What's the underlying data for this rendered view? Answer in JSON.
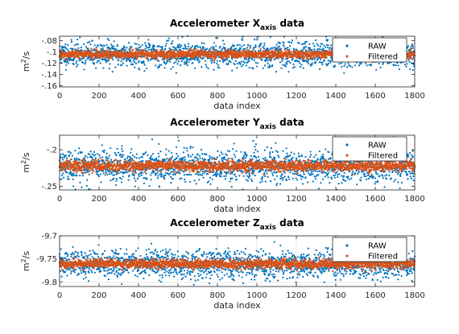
{
  "colors": {
    "raw": "#0072BD",
    "filtered": "#D95319",
    "axis": "#262626",
    "grid": "#dddddd"
  },
  "chart_data": [
    {
      "type": "scatter",
      "title_main": "Accelerometer X",
      "title_sub": "axis",
      "title_rest": " data",
      "xlabel": "data index",
      "ylabel_base": "m",
      "ylabel_sup": "2",
      "ylabel_rest": "/s",
      "xlim": [
        0,
        1800
      ],
      "ylim": [
        -0.162,
        -0.072
      ],
      "xticks": [
        0,
        200,
        400,
        600,
        800,
        1000,
        1200,
        1400,
        1600,
        1800
      ],
      "yticks": [
        -0.08,
        -0.1,
        -0.12,
        -0.14,
        -0.16
      ],
      "legend": [
        "RAW",
        "Filtered"
      ],
      "legend_position": "top-right",
      "grid": false,
      "series": [
        {
          "name": "RAW",
          "n": 1800,
          "mean": -0.104,
          "spread": 0.011,
          "seed": 11
        },
        {
          "name": "Filtered",
          "n": 1800,
          "mean": -0.104,
          "spread": 0.0035,
          "seed": 12
        }
      ]
    },
    {
      "type": "scatter",
      "title_main": "Accelerometer Y",
      "title_sub": "axis",
      "title_rest": " data",
      "xlabel": "data index",
      "ylabel_base": "m",
      "ylabel_sup": "2",
      "ylabel_rest": "/s",
      "xlim": [
        0,
        1800
      ],
      "ylim": [
        -0.255,
        -0.18
      ],
      "xticks": [
        0,
        200,
        400,
        600,
        800,
        1000,
        1200,
        1400,
        1600,
        1800
      ],
      "yticks": [
        -0.2,
        -0.25
      ],
      "legend": [
        "RAW",
        "Filtered"
      ],
      "legend_position": "top-right",
      "grid": false,
      "series": [
        {
          "name": "RAW",
          "n": 1800,
          "mean": -0.222,
          "spread": 0.011,
          "seed": 21
        },
        {
          "name": "Filtered",
          "n": 1800,
          "mean": -0.222,
          "spread": 0.0035,
          "seed": 22
        }
      ]
    },
    {
      "type": "scatter",
      "title_main": "Accelerometer Z",
      "title_sub": "axis",
      "title_rest": " data",
      "xlabel": "data index",
      "ylabel_base": "m",
      "ylabel_sup": "2",
      "ylabel_rest": "/s",
      "xlim": [
        0,
        1800
      ],
      "ylim": [
        -9.81,
        -9.7
      ],
      "xticks": [
        0,
        200,
        400,
        600,
        800,
        1000,
        1200,
        1400,
        1600,
        1800
      ],
      "yticks": [
        -9.7,
        -9.75,
        -9.8
      ],
      "legend": [
        "RAW",
        "Filtered"
      ],
      "legend_position": "top-right",
      "grid": true,
      "series": [
        {
          "name": "RAW",
          "n": 1800,
          "mean": -9.761,
          "spread": 0.015,
          "seed": 31
        },
        {
          "name": "Filtered",
          "n": 1800,
          "mean": -9.761,
          "spread": 0.005,
          "seed": 32
        }
      ]
    }
  ]
}
